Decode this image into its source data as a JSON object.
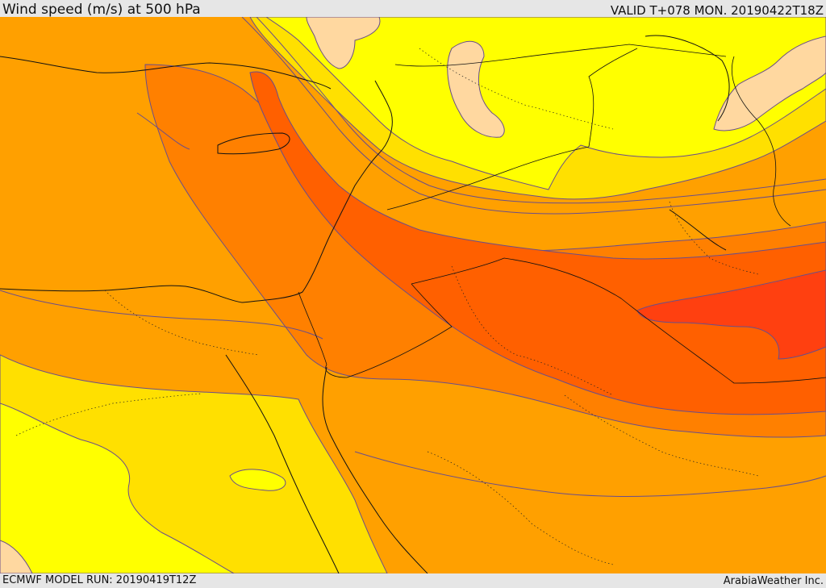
{
  "header": {
    "title": "Wind speed (m/s) at 500 hPa",
    "valid_time": "VALID T+078 MON. 20190422T18Z"
  },
  "footer": {
    "model_run": "ECMWF MODEL RUN: 20190419T12Z",
    "credit": "ArabiaWeather Inc."
  },
  "colors": {
    "band_1": "#ffd8a0",
    "band_2": "#ffff00",
    "band_3": "#ffe000",
    "band_4": "#ffc000",
    "band_5": "#ffa000",
    "band_6": "#ff8000",
    "band_7": "#ff6000",
    "band_8": "#ff4010",
    "contour": "#6a4e8a",
    "coastline": "#111111",
    "border": "#111111"
  }
}
